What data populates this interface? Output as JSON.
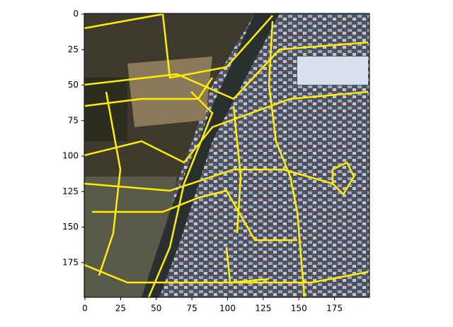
{
  "chart_data": {
    "type": "image",
    "xlim": [
      -0.5,
      199.5
    ],
    "ylim": [
      199.5,
      -0.5
    ],
    "xticks": [
      0,
      25,
      50,
      75,
      100,
      125,
      150,
      175
    ],
    "yticks": [
      0,
      25,
      50,
      75,
      100,
      125,
      150,
      175
    ]
  }
}
